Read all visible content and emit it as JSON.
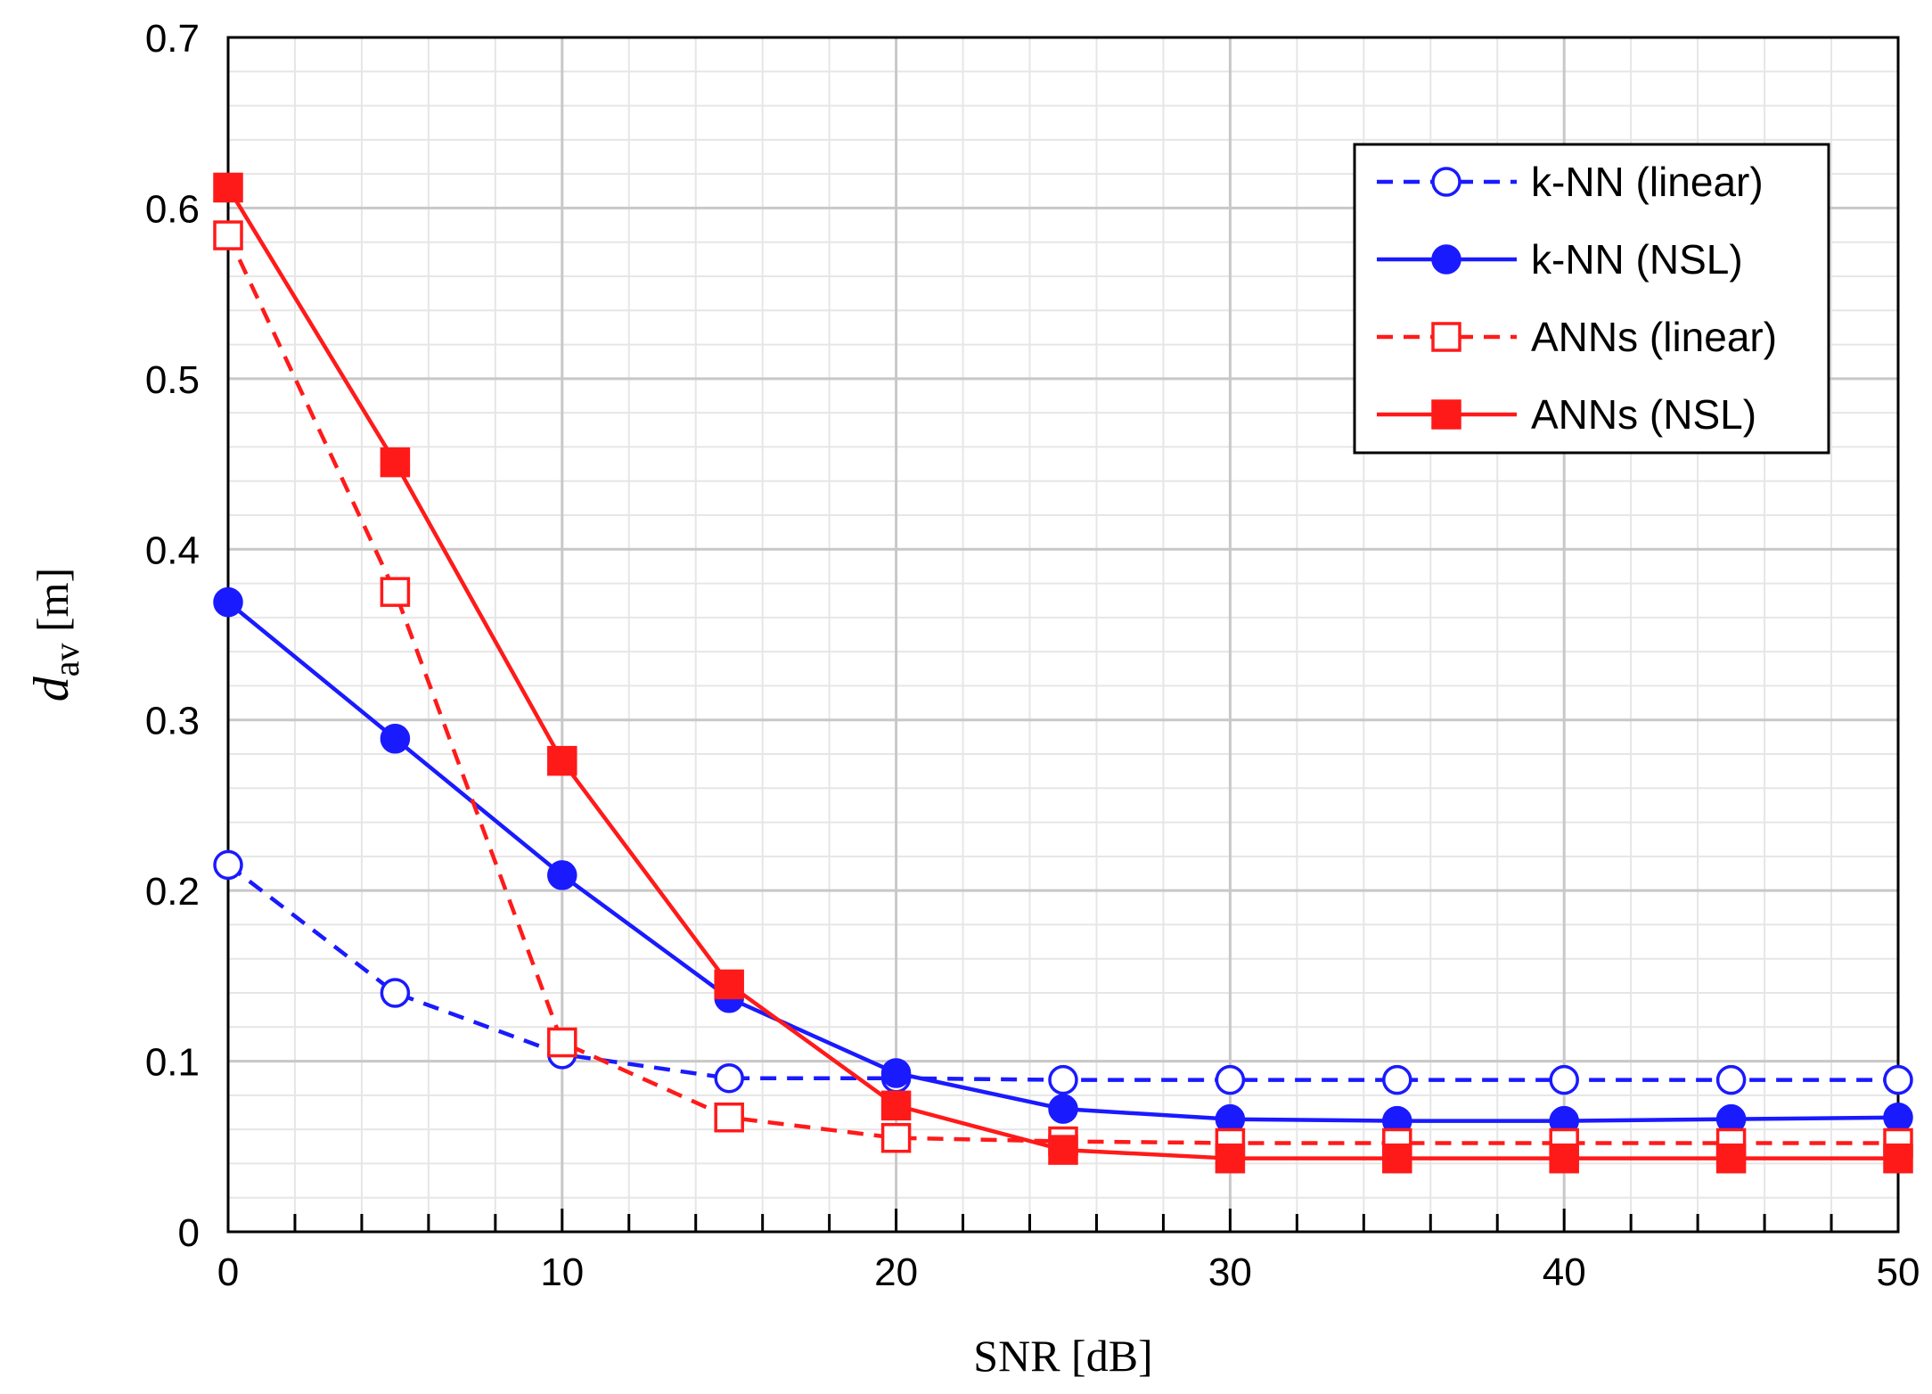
{
  "chart_data": {
    "type": "line",
    "title": "",
    "xlabel": "SNR [dB]",
    "ylabel": {
      "main": "d",
      "sub": "av",
      "unit": " [m]"
    },
    "xlim": [
      0,
      50
    ],
    "ylim": [
      0,
      0.7
    ],
    "x_major_ticks": [
      0,
      10,
      20,
      30,
      40,
      50
    ],
    "x_tick_labels": [
      "0",
      "10",
      "20",
      "30",
      "40",
      "50"
    ],
    "y_major_ticks": [
      0,
      0.1,
      0.2,
      0.3,
      0.4,
      0.5,
      0.6,
      0.7
    ],
    "y_tick_labels": [
      "0",
      "0.1",
      "0.2",
      "0.3",
      "0.4",
      "0.5",
      "0.6",
      "0.7"
    ],
    "x_minor_step": 2,
    "y_minor_step": 0.02,
    "grid": true,
    "legend_position": "top-right",
    "x": [
      0,
      5,
      10,
      15,
      20,
      25,
      30,
      35,
      40,
      45,
      50
    ],
    "series": [
      {
        "name": "k-NN (linear)",
        "color": "#1a1aff",
        "dashed": true,
        "marker": "circle",
        "filled": false,
        "values": [
          0.215,
          0.14,
          0.104,
          0.09,
          0.09,
          0.089,
          0.089,
          0.089,
          0.089,
          0.089,
          0.089
        ]
      },
      {
        "name": "k-NN (NSL)",
        "color": "#1a1aff",
        "dashed": false,
        "marker": "circle",
        "filled": true,
        "values": [
          0.369,
          0.289,
          0.209,
          0.137,
          0.093,
          0.072,
          0.066,
          0.065,
          0.065,
          0.066,
          0.067
        ]
      },
      {
        "name": "ANNs (linear)",
        "color": "#ff1a1a",
        "dashed": true,
        "marker": "square",
        "filled": false,
        "values": [
          0.584,
          0.375,
          0.111,
          0.067,
          0.055,
          0.053,
          0.052,
          0.052,
          0.052,
          0.052,
          0.052
        ]
      },
      {
        "name": "ANNs (NSL)",
        "color": "#ff1a1a",
        "dashed": false,
        "marker": "square",
        "filled": true,
        "values": [
          0.612,
          0.451,
          0.276,
          0.145,
          0.074,
          0.048,
          0.043,
          0.043,
          0.043,
          0.043,
          0.043
        ]
      }
    ]
  }
}
